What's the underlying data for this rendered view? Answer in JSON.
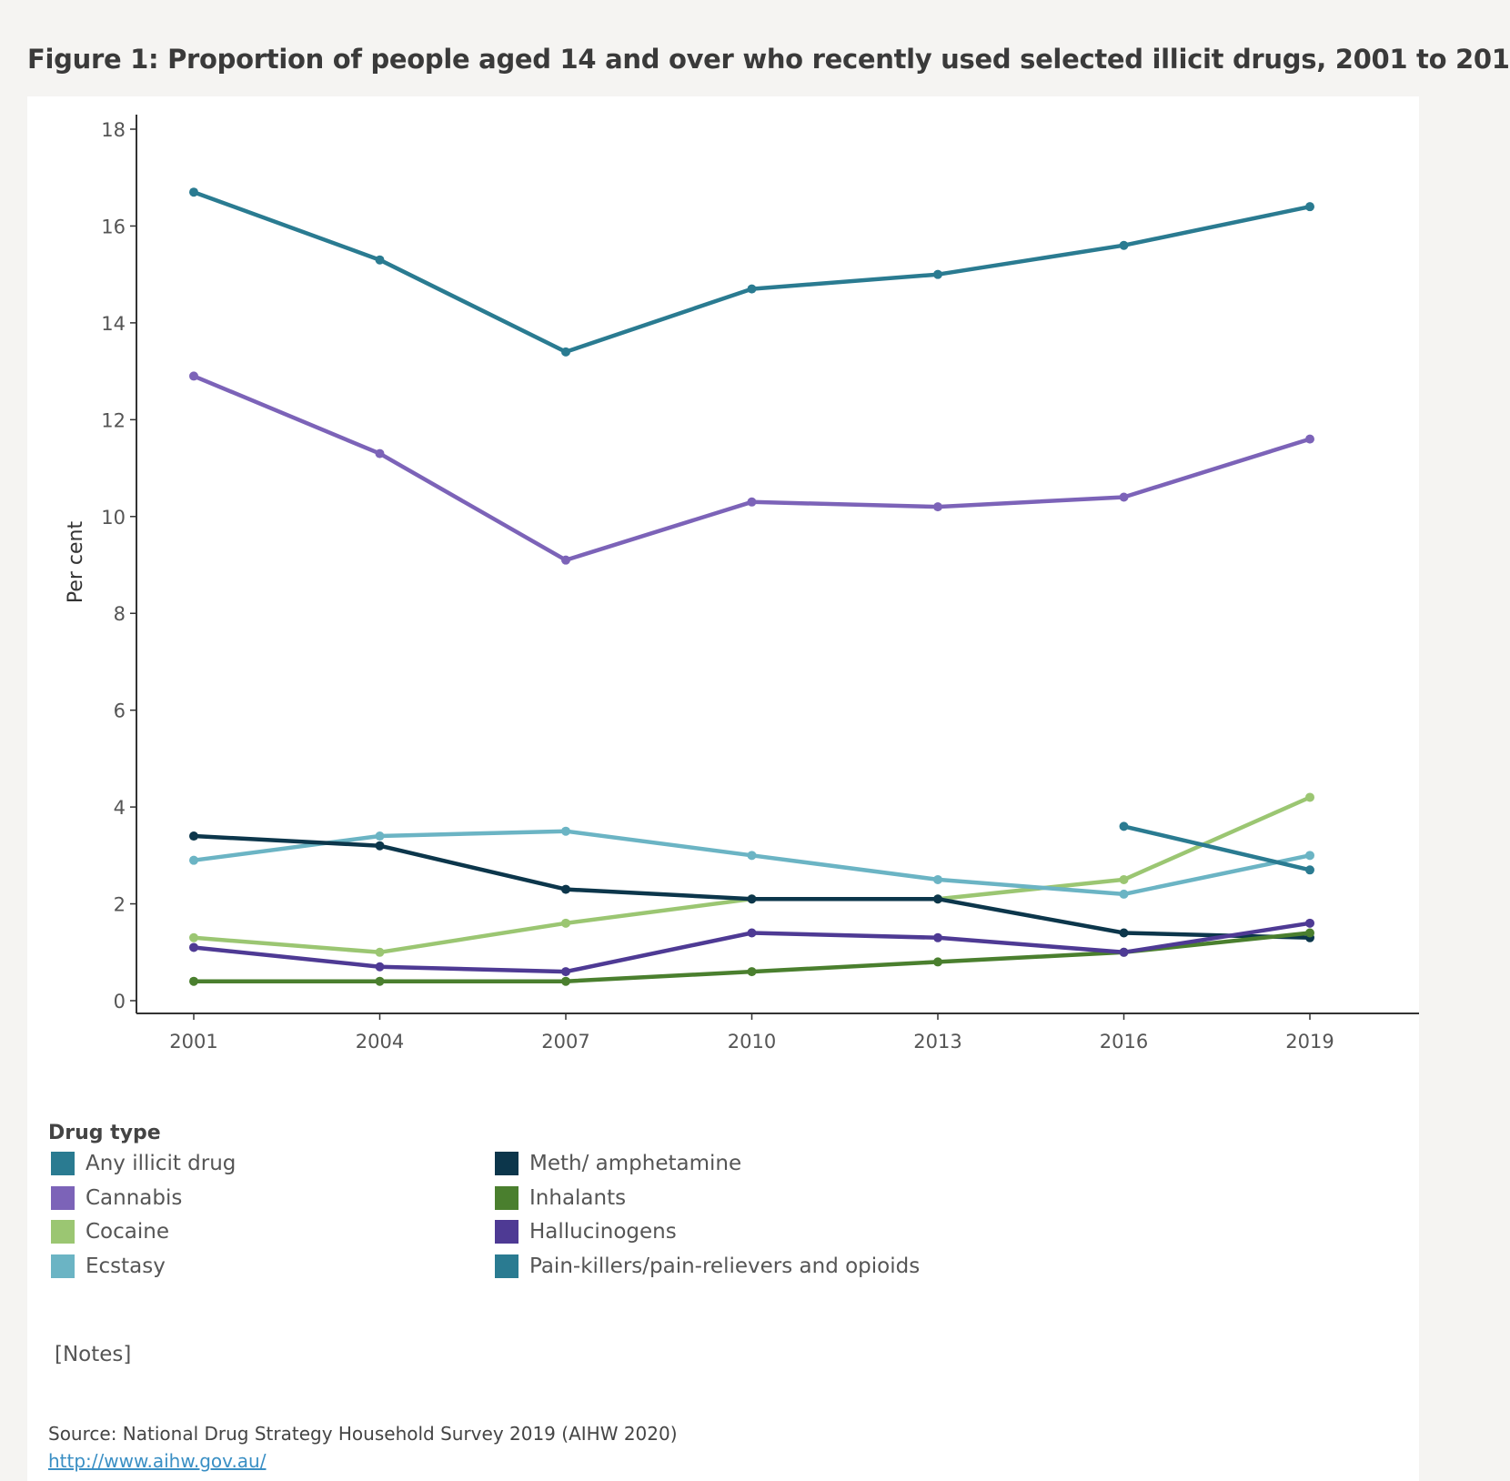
{
  "title": "Figure 1: Proportion of people aged 14 and over who recently used selected illicit drugs, 2001 to 201",
  "legend_title": "Drug type",
  "notes_label": "[Notes]",
  "source_text": "Source:  National Drug Strategy Household Survey 2019 (AIHW 2020)",
  "source_link": "http://www.aihw.gov.au/",
  "chart_data": {
    "type": "line",
    "title": "Figure 1: Proportion of people aged 14 and over who recently used selected illicit drugs, 2001 to 201",
    "xlabel": "",
    "ylabel": "Per cent",
    "x": [
      2001,
      2004,
      2007,
      2010,
      2013,
      2016,
      2019
    ],
    "x_ticks": [
      "2001",
      "2004",
      "2007",
      "2010",
      "2013",
      "2016",
      "2019"
    ],
    "y_ticks": [
      "0",
      "2",
      "4",
      "6",
      "8",
      "10",
      "12",
      "14",
      "16",
      "18"
    ],
    "ylim": [
      0,
      18
    ],
    "grid": false,
    "legend_position": "bottom",
    "series": [
      {
        "name": "Any illicit drug",
        "color": "#2a7b91",
        "values": [
          16.7,
          15.3,
          13.4,
          14.7,
          15.0,
          15.6,
          16.4
        ]
      },
      {
        "name": "Cannabis",
        "color": "#7c63b8",
        "values": [
          12.9,
          11.3,
          9.1,
          10.3,
          10.2,
          10.4,
          11.6
        ]
      },
      {
        "name": "Cocaine",
        "color": "#9bc672",
        "values": [
          1.3,
          1.0,
          1.6,
          2.1,
          2.1,
          2.5,
          4.2
        ]
      },
      {
        "name": "Ecstasy",
        "color": "#6bb4c4",
        "values": [
          2.9,
          3.4,
          3.5,
          3.0,
          2.5,
          2.2,
          3.0
        ]
      },
      {
        "name": "Meth/ amphetamine",
        "color": "#0c364b",
        "values": [
          3.4,
          3.2,
          2.3,
          2.1,
          2.1,
          1.4,
          1.3
        ]
      },
      {
        "name": "Inhalants",
        "color": "#4a7f2e",
        "values": [
          0.4,
          0.4,
          0.4,
          0.6,
          0.8,
          1.0,
          1.4
        ]
      },
      {
        "name": "Hallucinogens",
        "color": "#4e3a94",
        "values": [
          1.1,
          0.7,
          0.6,
          1.4,
          1.3,
          1.0,
          1.6
        ]
      },
      {
        "name": "Pain-killers/pain-relievers and opioids",
        "color": "#2a7b91",
        "values": [
          null,
          null,
          null,
          null,
          null,
          3.6,
          2.7
        ]
      }
    ]
  }
}
